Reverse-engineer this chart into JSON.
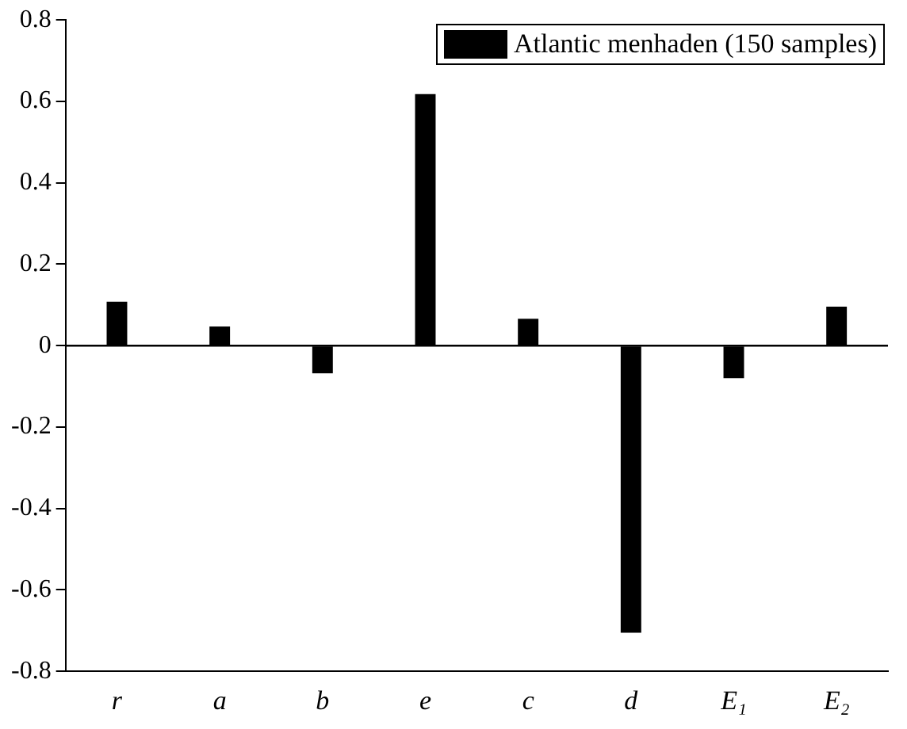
{
  "chart_data": {
    "type": "bar",
    "categories": [
      "r",
      "a",
      "b",
      "e",
      "c",
      "d",
      "E₁",
      "E₂"
    ],
    "series": [
      {
        "name": "Atlantic menhaden (150 samples)",
        "color": "#000000",
        "values": [
          0.108,
          0.047,
          -0.068,
          0.618,
          0.066,
          -0.705,
          -0.08,
          0.096
        ]
      }
    ],
    "ylim": [
      -0.8,
      0.8
    ],
    "yticks": [
      -0.8,
      -0.6,
      -0.4,
      -0.2,
      0,
      0.2,
      0.4,
      0.6,
      0.8
    ],
    "ref_lines": [
      {
        "axis": "y",
        "value": 0,
        "color": "#000000"
      }
    ],
    "grid": false,
    "legend": "top right"
  }
}
